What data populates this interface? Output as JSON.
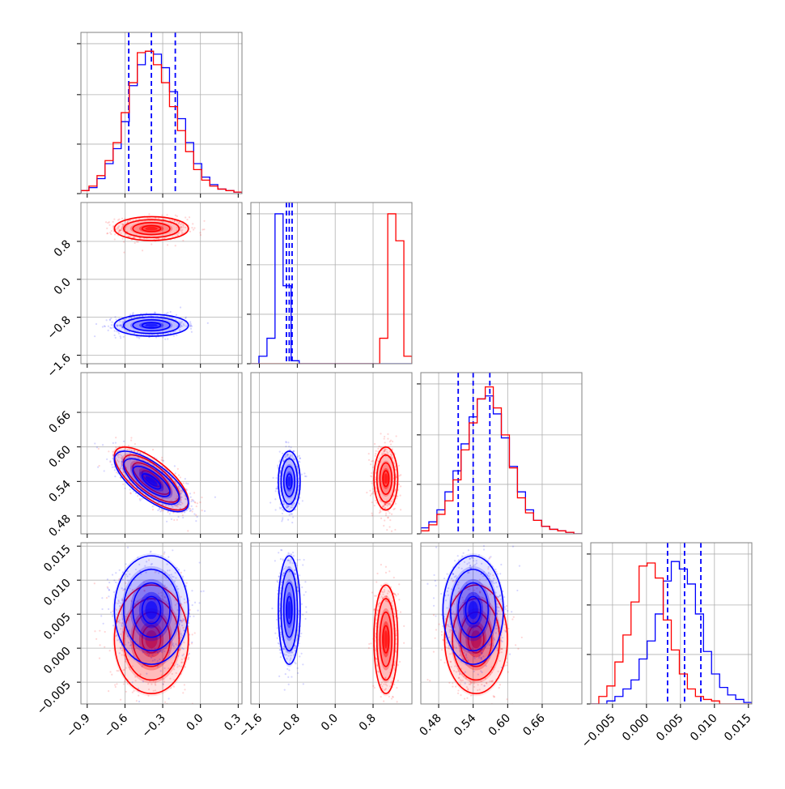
{
  "chart_data": {
    "type": "corner",
    "title": "",
    "colors": {
      "series_a": "#0000ff",
      "series_b": "#ff0000",
      "grid": "#b0b0b0",
      "frame": "#808080"
    },
    "parameters": [
      {
        "ticks": [
          -0.9,
          -0.6,
          -0.3,
          0.0,
          0.3
        ],
        "tick_labels": [
          "−0.9",
          "−0.6",
          "−0.3",
          "0.0",
          "0.3"
        ],
        "range": [
          -0.95,
          0.33
        ]
      },
      {
        "ticks": [
          -1.6,
          -0.8,
          0.0,
          0.8
        ],
        "tick_labels": [
          "−1.6",
          "−0.8",
          "0.0",
          "0.8"
        ],
        "range": [
          -1.78,
          1.62
        ]
      },
      {
        "ticks": [
          0.48,
          0.54,
          0.6,
          0.66
        ],
        "tick_labels": [
          "0.48",
          "0.54",
          "0.60",
          "0.66"
        ],
        "range": [
          0.449,
          0.729
        ]
      },
      {
        "ticks": [
          -0.005,
          0.0,
          0.005,
          0.01,
          0.015
        ],
        "tick_labels": [
          "−0.005",
          "0.000",
          "0.005",
          "0.010",
          "0.015"
        ],
        "range": [
          -0.0082,
          0.0155
        ]
      }
    ],
    "series": [
      {
        "color": "blue",
        "mean": [
          -0.39,
          -0.97,
          0.54,
          0.0056
        ],
        "sigma": [
          0.14,
          0.11,
          0.025,
          0.0038
        ],
        "quantiles": [
          [
            -0.57,
            -0.39,
            -0.2
          ],
          [
            -1.03,
            -0.97,
            -0.91
          ],
          [
            0.514,
            0.54,
            0.569
          ],
          [
            0.0031,
            0.0056,
            0.008
          ]
        ],
        "hist": [
          [
            0.02,
            0.04,
            0.1,
            0.2,
            0.3,
            0.48,
            0.72,
            0.86,
            0.95,
            0.93,
            0.84,
            0.68,
            0.5,
            0.34,
            0.2,
            0.11,
            0.06,
            0.03,
            0.02,
            0.01
          ],
          [
            0.0,
            0.05,
            0.17,
            1.0,
            0.52,
            0.02,
            0.0,
            0.0,
            0.0,
            0.0,
            0.0,
            0.0,
            0.0,
            0.0,
            0.0,
            0.0,
            0.0,
            0.0,
            0.0,
            0.0
          ],
          [
            0.04,
            0.08,
            0.16,
            0.28,
            0.42,
            0.6,
            0.78,
            0.9,
            0.92,
            0.8,
            0.64,
            0.45,
            0.28,
            0.16,
            0.09,
            0.05,
            0.03,
            0.02,
            0.01,
            0.0
          ],
          [
            0.0,
            0.0,
            0.02,
            0.05,
            0.1,
            0.16,
            0.3,
            0.42,
            0.6,
            0.82,
            0.95,
            0.9,
            0.8,
            0.6,
            0.35,
            0.2,
            0.11,
            0.06,
            0.03,
            0.01
          ]
        ]
      },
      {
        "color": "red",
        "mean": [
          -0.39,
          1.07,
          0.545,
          0.0013
        ],
        "sigma": [
          0.14,
          0.12,
          0.026,
          0.0038
        ],
        "quantiles": null,
        "hist": [
          [
            0.02,
            0.05,
            0.12,
            0.22,
            0.34,
            0.54,
            0.74,
            0.94,
            0.95,
            0.86,
            0.74,
            0.58,
            0.42,
            0.28,
            0.16,
            0.09,
            0.05,
            0.03,
            0.02,
            0.01
          ],
          [
            0.0,
            0.0,
            0.0,
            0.0,
            0.0,
            0.0,
            0.0,
            0.0,
            0.0,
            0.0,
            0.0,
            0.0,
            0.0,
            0.0,
            0.0,
            0.0,
            0.17,
            1.0,
            0.82,
            0.05
          ],
          [
            0.02,
            0.06,
            0.13,
            0.22,
            0.36,
            0.56,
            0.74,
            0.9,
            0.98,
            0.84,
            0.66,
            0.44,
            0.24,
            0.14,
            0.09,
            0.05,
            0.03,
            0.02,
            0.01,
            0.0
          ],
          [
            0.0,
            0.05,
            0.12,
            0.28,
            0.46,
            0.68,
            0.92,
            0.94,
            0.84,
            0.56,
            0.36,
            0.2,
            0.1,
            0.05,
            0.03,
            0.02,
            0.0,
            0.0,
            0.0,
            0.0
          ]
        ]
      }
    ],
    "correlations": {
      "0-2": -0.72,
      "0-3": 0.0,
      "1-2": 0.0,
      "1-3": 0.0,
      "2-3": 0.0
    },
    "contour_levels_sigma": [
      0.5,
      1.0,
      1.5,
      2.0
    ],
    "scatter_points_per_panel": 700,
    "grid": true,
    "legend": "none"
  }
}
